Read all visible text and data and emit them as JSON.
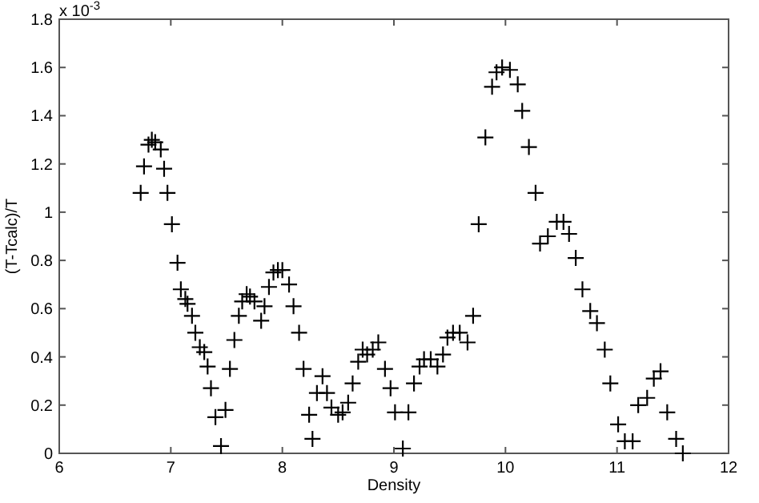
{
  "chart_data": {
    "type": "scatter",
    "xlabel": "Density",
    "ylabel": "(T-Tcalc)/T",
    "annotations": [
      "x 10$^{-3}$"
    ],
    "marker": "cross",
    "grid": false,
    "color": "#000000",
    "xlim": [
      6,
      12
    ],
    "xticks": [
      6,
      7,
      8,
      9,
      10,
      11,
      12
    ],
    "ylim": [
      0,
      1.8
    ],
    "yticks": [
      0,
      0.2,
      0.4,
      0.6,
      0.8,
      1,
      1.2,
      1.4,
      1.6,
      1.8
    ],
    "x": [
      6.73,
      6.76,
      6.8,
      6.83,
      6.86,
      6.91,
      6.94,
      6.97,
      7.01,
      7.06,
      7.09,
      7.13,
      7.15,
      7.19,
      7.22,
      7.26,
      7.3,
      7.33,
      7.36,
      7.4,
      7.45,
      7.49,
      7.53,
      7.57,
      7.61,
      7.64,
      7.68,
      7.71,
      7.75,
      7.81,
      7.84,
      7.88,
      7.92,
      7.96,
      8.0,
      8.06,
      8.1,
      8.15,
      8.19,
      8.24,
      8.27,
      8.31,
      8.36,
      8.4,
      8.44,
      8.5,
      8.54,
      8.59,
      8.63,
      8.68,
      8.72,
      8.76,
      8.81,
      8.86,
      8.92,
      8.97,
      9.01,
      9.08,
      9.13,
      9.18,
      9.23,
      9.27,
      9.33,
      9.39,
      9.44,
      9.48,
      9.53,
      9.59,
      9.66,
      9.71,
      9.76,
      9.82,
      9.88,
      9.92,
      9.97,
      10.04,
      10.11,
      10.15,
      10.21,
      10.27,
      10.31,
      10.38,
      10.46,
      10.52,
      10.57,
      10.63,
      10.69,
      10.76,
      10.82,
      10.89,
      10.94,
      11.01,
      11.07,
      11.14,
      11.19,
      11.27,
      11.33,
      11.39,
      11.45,
      11.53,
      11.59
    ],
    "values": [
      1.08,
      1.19,
      1.28,
      1.3,
      1.29,
      1.26,
      1.18,
      1.08,
      0.95,
      0.79,
      0.68,
      0.64,
      0.62,
      0.57,
      0.5,
      0.44,
      0.42,
      0.36,
      0.27,
      0.15,
      0.03,
      0.18,
      0.35,
      0.47,
      0.57,
      0.63,
      0.66,
      0.65,
      0.63,
      0.55,
      0.61,
      0.69,
      0.75,
      0.76,
      0.76,
      0.7,
      0.61,
      0.5,
      0.35,
      0.16,
      0.06,
      0.25,
      0.32,
      0.25,
      0.19,
      0.16,
      0.17,
      0.21,
      0.29,
      0.38,
      0.43,
      0.41,
      0.43,
      0.46,
      0.35,
      0.27,
      0.17,
      0.02,
      0.17,
      0.29,
      0.36,
      0.39,
      0.39,
      0.36,
      0.41,
      0.48,
      0.5,
      0.5,
      0.46,
      0.57,
      0.95,
      1.31,
      1.52,
      1.58,
      1.6,
      1.59,
      1.53,
      1.42,
      1.27,
      1.08,
      0.87,
      0.9,
      0.96,
      0.96,
      0.91,
      0.81,
      0.68,
      0.59,
      0.54,
      0.43,
      0.29,
      0.12,
      0.05,
      0.05,
      0.2,
      0.23,
      0.31,
      0.34,
      0.17,
      0.06,
      0.0
    ]
  }
}
